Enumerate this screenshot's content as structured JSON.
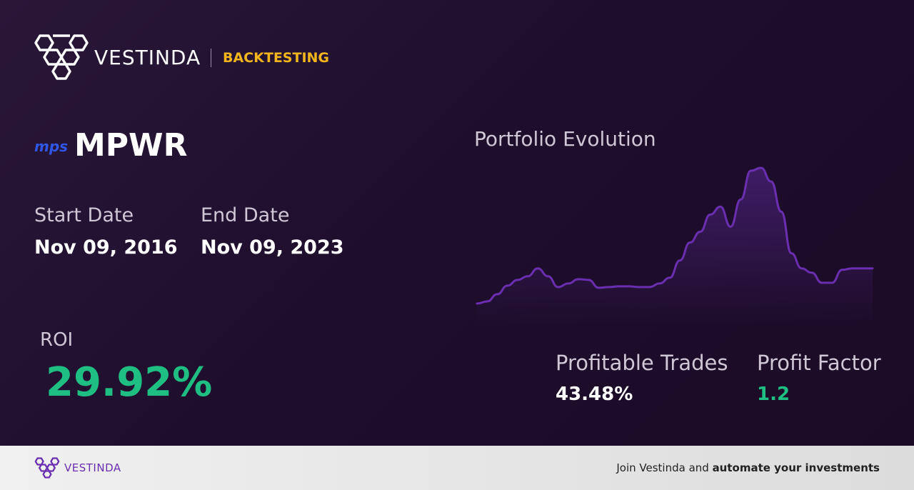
{
  "header": {
    "brand": "VESTINDA",
    "section": "BACKTESTING"
  },
  "ticker": {
    "logo_text": "mps",
    "symbol": "MPWR"
  },
  "dates": {
    "start": {
      "label": "Start Date",
      "value": "Nov 09, 2016"
    },
    "end": {
      "label": "End Date",
      "value": "Nov 09, 2023"
    }
  },
  "roi": {
    "label": "ROI",
    "value": "29.92%"
  },
  "chart_data": {
    "type": "line",
    "title": "Portfolio Evolution",
    "color": "#6a2fb0",
    "values": [
      0,
      3,
      13,
      25,
      33,
      38,
      49,
      38,
      23,
      28,
      34,
      33,
      22,
      23,
      24,
      24,
      23,
      23,
      28,
      36,
      60,
      85,
      100,
      124,
      135,
      107,
      145,
      185,
      189,
      170,
      128,
      70,
      49,
      43,
      29,
      29,
      47,
      49,
      49,
      49
    ]
  },
  "stats": {
    "profitable_trades": {
      "label": "Profitable Trades",
      "value": "43.48%"
    },
    "profit_factor": {
      "label": "Profit Factor",
      "value": "1.2"
    }
  },
  "footer": {
    "brand": "VESTINDA",
    "cta_prefix": "Join Vestinda and ",
    "cta_emphasis": "automate your investments"
  }
}
